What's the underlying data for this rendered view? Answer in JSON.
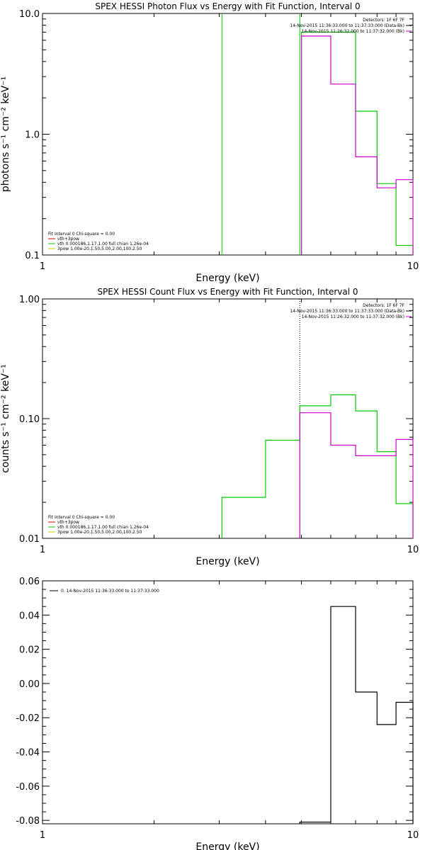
{
  "chart_data": [
    {
      "type": "line",
      "title": "SPEX HESSI Photon Flux vs Energy with Fit Function, Interval 0",
      "xlabel": "Energy (keV)",
      "ylabel": "photons s⁻¹ cm⁻² keV⁻¹",
      "xscale": "log",
      "yscale": "log",
      "xlim": [
        1,
        10
      ],
      "ylim": [
        0.1,
        10
      ],
      "x_ticks": [
        {
          "v": 1,
          "label": "1"
        },
        {
          "v": 10,
          "label": "10"
        }
      ],
      "y_ticks": [
        {
          "v": 0.1,
          "label": "0.1"
        },
        {
          "v": 1,
          "label": "1.0"
        },
        {
          "v": 10,
          "label": "10.0"
        }
      ],
      "header_lines": [
        {
          "text": "Detectors: 1F 6F 7F",
          "color": null
        },
        {
          "text": "14-Nov-2015 11:36:33.000 to 11:37:33.000 (Data-Bk)",
          "color": "#000000"
        },
        {
          "text": "14-Nov-2015 11:26:32.000 to 11:37:32.000 (Bk)",
          "color": "#cc00cc"
        }
      ],
      "fit_info": [
        {
          "text": "Fit Interval 0   Chi-square = 0.00",
          "color": null
        },
        {
          "text": "vth+3pow",
          "color": "#cc0000"
        },
        {
          "text": "vth 0.000186,1.17,1.00  full chian 1.26e-04",
          "color": "#00cc00"
        },
        {
          "text": "3pow 1.00e-20,1.50,5.00,2.00,100,2.50",
          "color": "#cccc00"
        }
      ],
      "vlines": [
        {
          "x": 3.05,
          "color": "#00cc00",
          "style": "solid"
        },
        {
          "x": 4.95,
          "color": "#00cc00",
          "style": "solid"
        }
      ],
      "series": [
        {
          "color": "#00cc00",
          "edges": [
            5,
            6,
            7,
            8,
            9,
            10
          ],
          "values": [
            7.0,
            7.0,
            1.55,
            0.39,
            0.12
          ]
        },
        {
          "color": "#cc00cc",
          "edges": [
            5,
            6,
            7,
            8,
            9,
            10
          ],
          "values": [
            6.5,
            2.6,
            0.65,
            0.36,
            0.42
          ]
        }
      ]
    },
    {
      "type": "line",
      "title": "SPEX HESSI Count Flux vs Energy with Fit Function, Interval 0",
      "xlabel": "Energy (keV)",
      "ylabel": "counts s⁻¹ cm⁻² keV⁻¹",
      "xscale": "log",
      "yscale": "log",
      "xlim": [
        1,
        10
      ],
      "ylim": [
        0.01,
        1
      ],
      "x_ticks": [
        {
          "v": 1,
          "label": "1"
        },
        {
          "v": 10,
          "label": "10"
        }
      ],
      "y_ticks": [
        {
          "v": 0.01,
          "label": "0.01"
        },
        {
          "v": 0.1,
          "label": "0.10"
        },
        {
          "v": 1,
          "label": "1.00"
        }
      ],
      "header_lines": [
        {
          "text": "Detectors: 1F 6F 7F",
          "color": null
        },
        {
          "text": "14-Nov-2015 11:36:33.000 to 11:37:33.000 (Data-Bk)",
          "color": "#000000"
        },
        {
          "text": "14-Nov-2015 11:26:32.000 to 11:37:32.000 (Bk)",
          "color": "#cc00cc"
        }
      ],
      "fit_info": [
        {
          "text": "Fit Interval 0   Chi-square = 0.00",
          "color": null
        },
        {
          "text": "vth+3pow",
          "color": "#cc0000"
        },
        {
          "text": "vth 0.000186,1.17,1.00  full chian 1.26e-04",
          "color": "#00cc00"
        },
        {
          "text": "3pow 1.00e-20,1.50,5.00,2.00,100,2.50",
          "color": "#cccc00"
        }
      ],
      "vlines": [
        {
          "x": 4.95,
          "color": "#000000",
          "style": "dotted"
        }
      ],
      "series": [
        {
          "color": "#00cc00",
          "edges": [
            3.05,
            4.0,
            4.95,
            6.0,
            7.0,
            8.0,
            9.0,
            10.0
          ],
          "values": [
            0.022,
            0.066,
            0.128,
            0.158,
            0.116,
            0.053,
            0.0195
          ]
        },
        {
          "color": "#cc00cc",
          "edges": [
            4.95,
            6.0,
            7.0,
            8.0,
            9.0,
            10.0
          ],
          "values": [
            0.112,
            0.06,
            0.049,
            0.049,
            0.067
          ]
        }
      ]
    },
    {
      "type": "line",
      "title": "",
      "xlabel": "Energy (keV)",
      "ylabel": "",
      "xscale": "log",
      "yscale": "linear",
      "xlim": [
        1,
        10
      ],
      "ylim": [
        -0.082,
        0.06
      ],
      "x_ticks": [
        {
          "v": 1,
          "label": "1"
        },
        {
          "v": 10,
          "label": "10"
        }
      ],
      "y_ticks": [
        {
          "v": 0.06,
          "label": "0.06"
        },
        {
          "v": 0.04,
          "label": "0.04"
        },
        {
          "v": 0.02,
          "label": "0.02"
        },
        {
          "v": 0.0,
          "label": "0.00"
        },
        {
          "v": -0.02,
          "label": "-0.02"
        },
        {
          "v": -0.04,
          "label": "-0.04"
        },
        {
          "v": -0.06,
          "label": "-0.06"
        },
        {
          "v": -0.08,
          "label": "-0.08"
        }
      ],
      "header_lines": [],
      "fit_info": [],
      "legend": [
        {
          "text": "0. 14-Nov-2015 11:36:33.000 to 11:37:33.000",
          "color": "#000000"
        }
      ],
      "vlines": [],
      "series": [
        {
          "color": "#000000",
          "edges": [
            4.95,
            6.0,
            7.0,
            8.0,
            9.0,
            10.0
          ],
          "values": [
            -0.081,
            0.045,
            -0.005,
            -0.024,
            -0.011
          ]
        }
      ]
    }
  ]
}
